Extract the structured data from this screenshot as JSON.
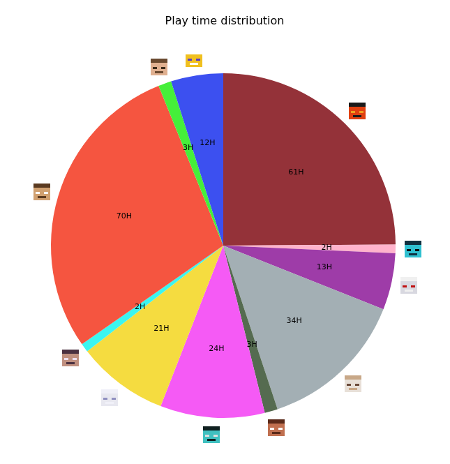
{
  "chart_data": {
    "type": "pie",
    "title": "Play time distribution",
    "values": [
      61,
      2,
      13,
      34,
      3,
      24,
      21,
      2,
      70,
      3,
      12
    ],
    "value_labels": [
      "61H",
      "2H",
      "13H",
      "34H",
      "3H",
      "24H",
      "21H",
      "2H",
      "70H",
      "3H",
      "12H"
    ],
    "colors": [
      "#943239",
      "#ffb3cc",
      "#9e3ca8",
      "#a3afb4",
      "#556b50",
      "#f55af5",
      "#f5dc40",
      "#3cf5f0",
      "#f55540",
      "#45ef3a",
      "#3c50f0"
    ],
    "data_labels": true
  }
}
